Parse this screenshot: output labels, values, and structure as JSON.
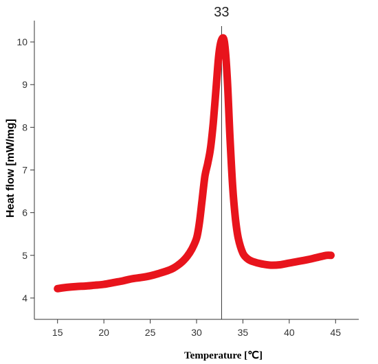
{
  "chart_data": {
    "type": "line",
    "title": "",
    "xlabel": "Temperature [℃]",
    "ylabel": "Heat flow [mW/mg]",
    "xlim": [
      12.5,
      47.5
    ],
    "ylim": [
      3.5,
      10.5
    ],
    "x_ticks": [
      15,
      20,
      25,
      30,
      35,
      40,
      45
    ],
    "y_ticks": [
      4,
      5,
      6,
      7,
      8,
      9,
      10
    ],
    "grid": false,
    "legend": "none",
    "annotations": [
      {
        "text": "33",
        "x": 32.7,
        "type": "vertical-line"
      }
    ],
    "series": [
      {
        "color": "#e8141c",
        "x": [
          15,
          16,
          17,
          18,
          19,
          20,
          21,
          22,
          23,
          24,
          25,
          26,
          27,
          27.5,
          28,
          28.5,
          29,
          29.5,
          30,
          30.3,
          30.6,
          30.9,
          31.2,
          31.5,
          31.8,
          32.1,
          32.4,
          32.7,
          33.0,
          33.3,
          33.6,
          33.9,
          34.2,
          34.5,
          35,
          35.5,
          36,
          37,
          38,
          39,
          40,
          41,
          42,
          43,
          44,
          44.5
        ],
        "y": [
          4.22,
          4.25,
          4.27,
          4.28,
          4.3,
          4.32,
          4.36,
          4.4,
          4.45,
          4.48,
          4.52,
          4.58,
          4.65,
          4.7,
          4.77,
          4.86,
          4.98,
          5.15,
          5.4,
          5.75,
          6.3,
          6.85,
          7.15,
          7.5,
          8.1,
          8.9,
          9.7,
          10.05,
          10.0,
          9.2,
          7.8,
          6.6,
          5.85,
          5.4,
          5.05,
          4.92,
          4.86,
          4.8,
          4.77,
          4.78,
          4.82,
          4.86,
          4.9,
          4.95,
          5.0,
          5.0
        ]
      }
    ]
  }
}
